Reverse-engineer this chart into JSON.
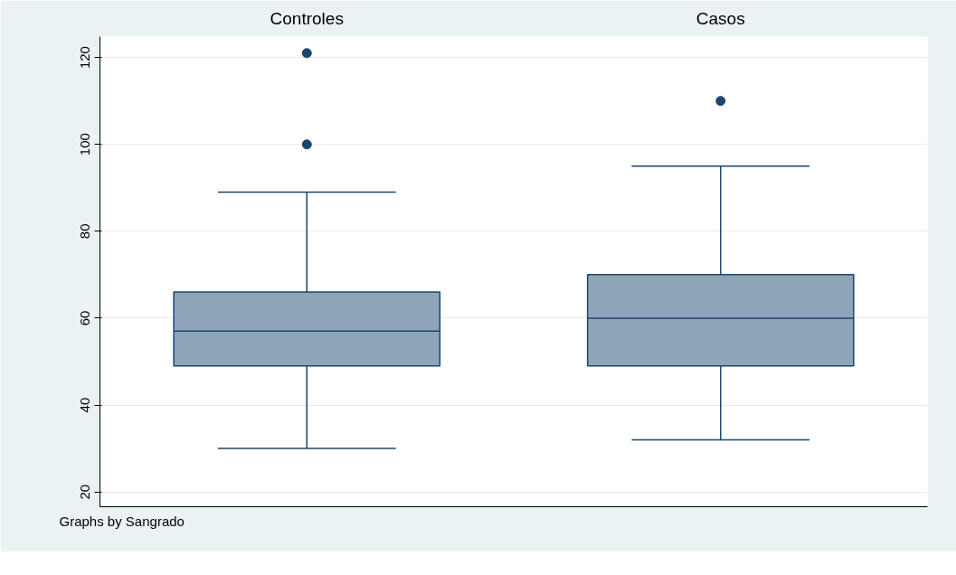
{
  "chart_data": {
    "type": "box",
    "categories": [
      "Controles",
      "Casos"
    ],
    "ylim": [
      16.6,
      124.8
    ],
    "yticks": [
      20,
      40,
      60,
      80,
      100,
      120
    ],
    "grid": "y",
    "marker": "circle",
    "series": [
      {
        "color": "#8ea4b8",
        "boxes": [
          {
            "low": 30,
            "q1": 49,
            "median": 57,
            "q3": 66,
            "high": 89,
            "outliers": [
              100,
              121
            ]
          },
          {
            "low": 32,
            "q1": 49,
            "median": 60,
            "q3": 70,
            "high": 95,
            "outliers": [
              110
            ]
          }
        ]
      }
    ],
    "annotations": [
      "Graphs by Sangrado"
    ]
  }
}
